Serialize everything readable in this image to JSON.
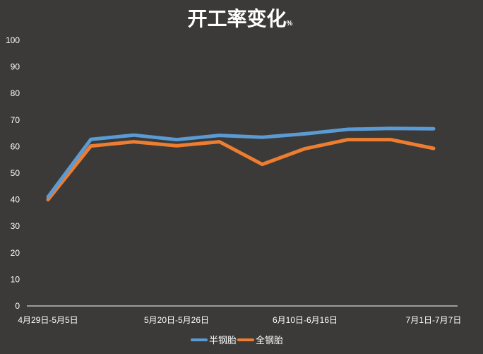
{
  "chart_data": {
    "type": "line",
    "title": "开工率变化",
    "title_unit": "%",
    "xlabel": "",
    "ylabel": "",
    "ylim": [
      0,
      100
    ],
    "yticks": [
      0,
      10,
      20,
      30,
      40,
      50,
      60,
      70,
      80,
      90,
      100
    ],
    "categories": [
      "4月29日-5月5日",
      "",
      "",
      "5月20日-5月26日",
      "",
      "",
      "6月10日-6月16日",
      "",
      "",
      "7月1日-7月7日"
    ],
    "x_tick_labels": [
      {
        "index": 0,
        "label": "4月29日-5月5日"
      },
      {
        "index": 3,
        "label": "5月20日-5月26日"
      },
      {
        "index": 6,
        "label": "6月10日-6月16日"
      },
      {
        "index": 9,
        "label": "7月1日-7月7日"
      }
    ],
    "series": [
      {
        "name": "半钢胎",
        "color": "#5b9bd5",
        "values": [
          41,
          62.7,
          64.3,
          62.6,
          64.2,
          63.5,
          64.8,
          66.5,
          66.8,
          66.7
        ]
      },
      {
        "name": "全钢胎",
        "color": "#ed7d31",
        "values": [
          40,
          60.2,
          61.8,
          60.3,
          61.8,
          53.3,
          59.2,
          62.6,
          62.6,
          59.3
        ]
      }
    ],
    "grid": false,
    "legend_position": "bottom"
  }
}
